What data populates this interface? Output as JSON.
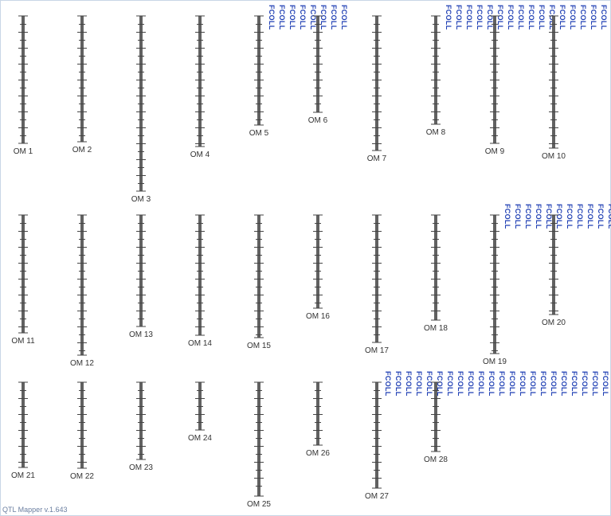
{
  "app": {
    "version_label": "QTL Mapper v.1.643"
  },
  "colors": {
    "chromosome": "#616161",
    "tick": "#444444",
    "label": "#333333",
    "qtl_label": "#1f3fb4"
  },
  "qtl_label_text": "FCOLL",
  "linkage_groups": [
    {
      "name": "OM 1",
      "qtl_labels": []
    },
    {
      "name": "OM 2",
      "qtl_labels": []
    },
    {
      "name": "OM 3",
      "qtl_labels": []
    },
    {
      "name": "OM 4",
      "qtl_labels": []
    },
    {
      "name": "OM 5",
      "qtl_labels": [
        "FCOLL",
        "FCOLL",
        "FCOLL",
        "FCOLL",
        "FCOLL",
        "FCOLL",
        "FCOLL",
        "FCOLL"
      ]
    },
    {
      "name": "OM 6",
      "qtl_labels": []
    },
    {
      "name": "OM 7",
      "qtl_labels": []
    },
    {
      "name": "OM 8",
      "qtl_labels": [
        "FCOLL",
        "FCOLL",
        "FCOLL",
        "FCOLL",
        "FCOLL",
        "FCOLL",
        "FCOLL",
        "FCOLL",
        "FCOLL",
        "FCOLL",
        "FCOLL",
        "FCOLL",
        "FCOLL",
        "FCOLL",
        "FCOLL",
        "FCOLL",
        "FCOLL",
        "FCOLL"
      ]
    },
    {
      "name": "OM 9",
      "qtl_labels": []
    },
    {
      "name": "OM 10",
      "qtl_labels": []
    },
    {
      "name": "OM 11",
      "qtl_labels": []
    },
    {
      "name": "OM 12",
      "qtl_labels": []
    },
    {
      "name": "OM 13",
      "qtl_labels": []
    },
    {
      "name": "OM 14",
      "qtl_labels": []
    },
    {
      "name": "OM 15",
      "qtl_labels": []
    },
    {
      "name": "OM 16",
      "qtl_labels": []
    },
    {
      "name": "OM 17",
      "qtl_labels": []
    },
    {
      "name": "OM 18",
      "qtl_labels": []
    },
    {
      "name": "OM 19",
      "qtl_labels": [
        "FCOLL",
        "FCOLL",
        "FCOLL",
        "FCOLL",
        "FCOLL",
        "FCOLL",
        "FCOLL",
        "FCOLL",
        "FCOLL",
        "FCOLL",
        "FCOLL",
        "FCOLL"
      ]
    },
    {
      "name": "OM 20",
      "qtl_labels": []
    },
    {
      "name": "OM 21",
      "qtl_labels": []
    },
    {
      "name": "OM 22",
      "qtl_labels": []
    },
    {
      "name": "OM 23",
      "qtl_labels": []
    },
    {
      "name": "OM 24",
      "qtl_labels": []
    },
    {
      "name": "OM 25",
      "qtl_labels": []
    },
    {
      "name": "OM 26",
      "qtl_labels": []
    },
    {
      "name": "OM 27",
      "qtl_labels": [
        "FCOLL",
        "FCOLL",
        "FCOLL",
        "FCOLL",
        "FCOLL",
        "FCOLL",
        "FCOLL",
        "FCOLL",
        "FCOLL",
        "FCOLL",
        "FCOLL",
        "FCOLL",
        "FCOLL",
        "FCOLL",
        "FCOLL",
        "FCOLL",
        "FCOLL",
        "FCOLL",
        "FCOLL",
        "FCOLL",
        "FCOLL",
        "FCOLL"
      ]
    },
    {
      "name": "OM 28",
      "qtl_labels": []
    }
  ]
}
